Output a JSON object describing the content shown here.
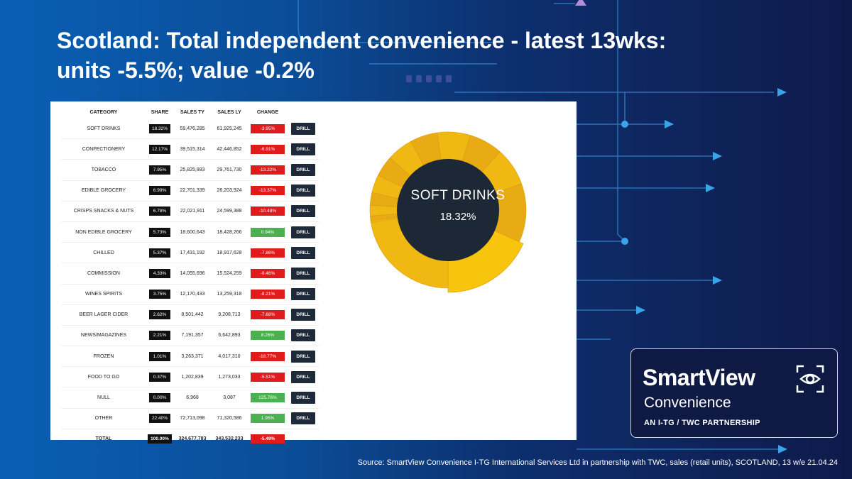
{
  "title": {
    "line1": "Scotland: Total independent convenience - latest 13wks:",
    "line2": "units -5.5%; value -0.2%"
  },
  "table": {
    "headers": [
      "CATEGORY",
      "SHARE",
      "SALES TY",
      "SALES LY",
      "CHANGE"
    ],
    "drill_label": "DRILL",
    "rows": [
      {
        "category": "SOFT DRINKS",
        "share": "18.32%",
        "ty": "59,476,285",
        "ly": "61,925,245",
        "change": "-3.95%",
        "dir": "neg"
      },
      {
        "category": "CONFECTIONERY",
        "share": "12.17%",
        "ty": "39,515,314",
        "ly": "42,446,852",
        "change": "-6.91%",
        "dir": "neg"
      },
      {
        "category": "TOBACCO",
        "share": "7.95%",
        "ty": "25,825,893",
        "ly": "29,761,730",
        "change": "-13.22%",
        "dir": "neg"
      },
      {
        "category": "EDIBLE GROCERY",
        "share": "6.99%",
        "ty": "22,701,339",
        "ly": "26,203,924",
        "change": "-13.37%",
        "dir": "neg"
      },
      {
        "category": "CRISPS SNACKS & NUTS",
        "share": "6.78%",
        "ty": "22,021,911",
        "ly": "24,599,388",
        "change": "-10.48%",
        "dir": "neg"
      },
      {
        "category": "NON EDIBLE GROCERY",
        "share": "5.73%",
        "ty": "18,600,643",
        "ly": "18,428,266",
        "change": "0.94%",
        "dir": "pos"
      },
      {
        "category": "CHILLED",
        "share": "5.37%",
        "ty": "17,431,192",
        "ly": "18,917,628",
        "change": "-7.86%",
        "dir": "neg"
      },
      {
        "category": "COMMISSION",
        "share": "4.33%",
        "ty": "14,055,696",
        "ly": "15,524,259",
        "change": "-9.46%",
        "dir": "neg"
      },
      {
        "category": "WINES SPIRITS",
        "share": "3.75%",
        "ty": "12,170,433",
        "ly": "13,259,318",
        "change": "-8.21%",
        "dir": "neg"
      },
      {
        "category": "BEER LAGER CIDER",
        "share": "2.62%",
        "ty": "8,501,442",
        "ly": "9,208,713",
        "change": "-7.68%",
        "dir": "neg"
      },
      {
        "category": "NEWS/MAGAZINES",
        "share": "2.21%",
        "ty": "7,191,357",
        "ly": "6,642,893",
        "change": "8.26%",
        "dir": "pos"
      },
      {
        "category": "FROZEN",
        "share": "1.01%",
        "ty": "3,263,371",
        "ly": "4,017,310",
        "change": "-18.77%",
        "dir": "neg"
      },
      {
        "category": "FOOD TO GO",
        "share": "0.37%",
        "ty": "1,202,839",
        "ly": "1,273,033",
        "change": "-5.51%",
        "dir": "neg"
      },
      {
        "category": "NULL",
        "share": "0.00%",
        "ty": "6,968",
        "ly": "3,087",
        "change": "125.76%",
        "dir": "pos"
      },
      {
        "category": "OTHER",
        "share": "22.40%",
        "ty": "72,713,098",
        "ly": "71,320,586",
        "change": "1.95%",
        "dir": "pos"
      }
    ],
    "total": {
      "category": "TOTAL",
      "share": "100.00%",
      "ty": "324,677,783",
      "ly": "343,532,233",
      "change": "-5.49%"
    }
  },
  "donut": {
    "selected_name": "SOFT DRINKS",
    "selected_share": "18.32%",
    "shares": [
      18.32,
      12.17,
      7.95,
      6.99,
      6.78,
      5.73,
      5.37,
      4.33,
      3.75,
      2.62,
      2.21,
      1.01,
      0.37,
      0.0,
      22.4
    ],
    "colors": {
      "selected": "#f7c40e",
      "base": "#e8ab14",
      "alt": "#f0b812",
      "center": "#1c2836"
    }
  },
  "logo": {
    "brand": "SmartView",
    "sub": "Convenience",
    "partnership": "AN I-TG / TWC PARTNERSHIP"
  },
  "source": "Source:  SmartView Convenience  I-TG International Services Ltd in partnership  with TWC, sales (retail units), SCOTLAND, 13 w/e 21.04.24"
}
